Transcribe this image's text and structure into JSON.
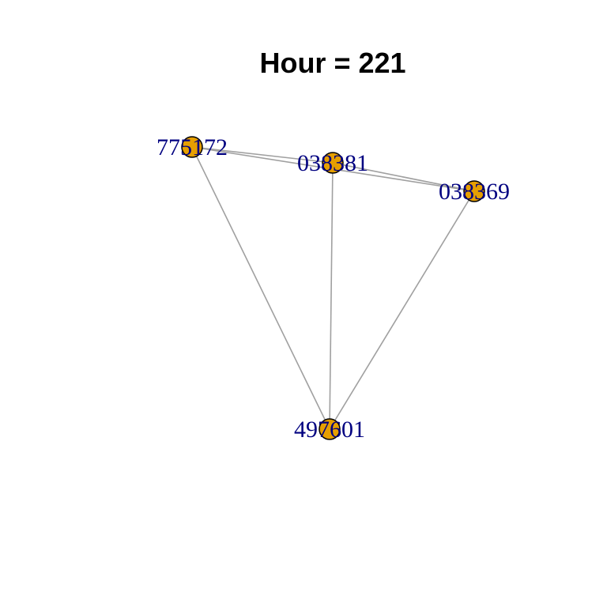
{
  "title": "Hour = 221",
  "colors": {
    "node_fill": "#E69F00",
    "node_stroke": "#000000",
    "edge": "#A0A0A0",
    "label": "#000080",
    "background": "#FFFFFF"
  },
  "graph": {
    "nodes": [
      {
        "id": "775172",
        "label": "775172"
      },
      {
        "id": "038381",
        "label": "038381"
      },
      {
        "id": "038369",
        "label": "038369"
      },
      {
        "id": "497601",
        "label": "497601"
      }
    ],
    "edges": [
      {
        "from": "775172",
        "to": "038381"
      },
      {
        "from": "775172",
        "to": "038369"
      },
      {
        "from": "038381",
        "to": "038369"
      },
      {
        "from": "775172",
        "to": "497601"
      },
      {
        "from": "038381",
        "to": "497601"
      },
      {
        "from": "038369",
        "to": "497601"
      }
    ]
  }
}
